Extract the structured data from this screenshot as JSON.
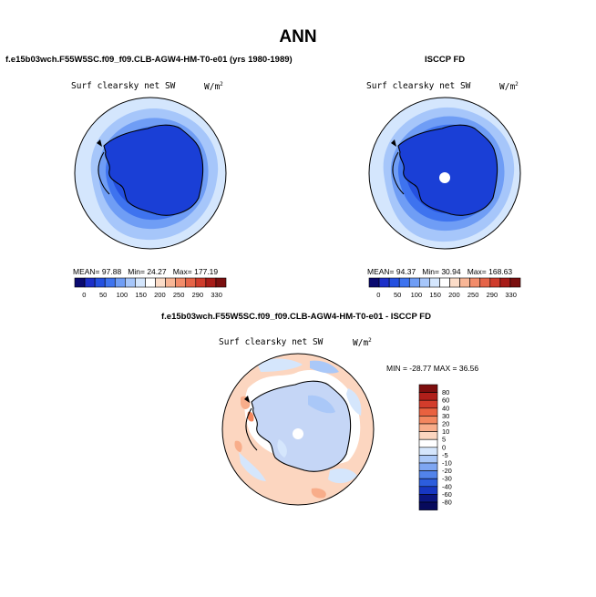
{
  "page": {
    "title": "ANN",
    "case_title": "f.e15b03wch.F55W5SC.f09_f09.CLB-AGW4-HM-T0-e01 (yrs 1980-1989)",
    "obs_title": "ISCCP FD",
    "diff_title": "f.e15b03wch.F55W5SC.f09_f09.CLB-AGW4-HM-T0-e01 - ISCCP FD"
  },
  "panels": {
    "model": {
      "variable": "Surf clearsky net SW",
      "units_base": "W/m",
      "units_exp": "2",
      "mean_label": "MEAN=",
      "mean": "97.88",
      "min_label": "Min=",
      "min": "24.27",
      "max_label": "Max=",
      "max": "177.19"
    },
    "obs": {
      "variable": "Surf clearsky net SW",
      "units_base": "W/m",
      "units_exp": "2",
      "mean_label": "MEAN=",
      "mean": "94.37",
      "min_label": "Min=",
      "min": "30.94",
      "max_label": "Max=",
      "max": "168.63"
    },
    "diff": {
      "variable": "Surf clearsky net SW",
      "units_base": "W/m",
      "units_exp": "2",
      "minmax_text": "MIN = -28.77 MAX =  36.56"
    }
  },
  "colorbars": {
    "abs_labels": [
      "0",
      "50",
      "100",
      "150",
      "200",
      "250",
      "290",
      "330"
    ],
    "abs_colors": [
      "#0a0a70",
      "#1c2fc8",
      "#2450e0",
      "#3e73ef",
      "#6f9df5",
      "#a6c6fa",
      "#d4e6fd",
      "#ffffff",
      "#fbdcc8",
      "#f8b696",
      "#f28c6a",
      "#e56448",
      "#cf3c2c",
      "#a71c18",
      "#7a0f0f"
    ],
    "diff_labels": [
      "80",
      "60",
      "40",
      "30",
      "20",
      "10",
      "5",
      "0",
      "-5",
      "-10",
      "-20",
      "-30",
      "-40",
      "-60",
      "-80"
    ],
    "diff_colors": [
      "#7d0d0d",
      "#b01f1a",
      "#d33c2b",
      "#e9613f",
      "#f3875f",
      "#f8ad8a",
      "#fcd6c0",
      "#ffffff",
      "#d5e6fc",
      "#aac8f8",
      "#7ea6f2",
      "#5283ea",
      "#2c5ddd",
      "#1737c2",
      "#0b1680",
      "#070a5c"
    ]
  },
  "colors": {
    "land_model": "#1a3fd6",
    "land_diff": "#c5d6f6"
  }
}
